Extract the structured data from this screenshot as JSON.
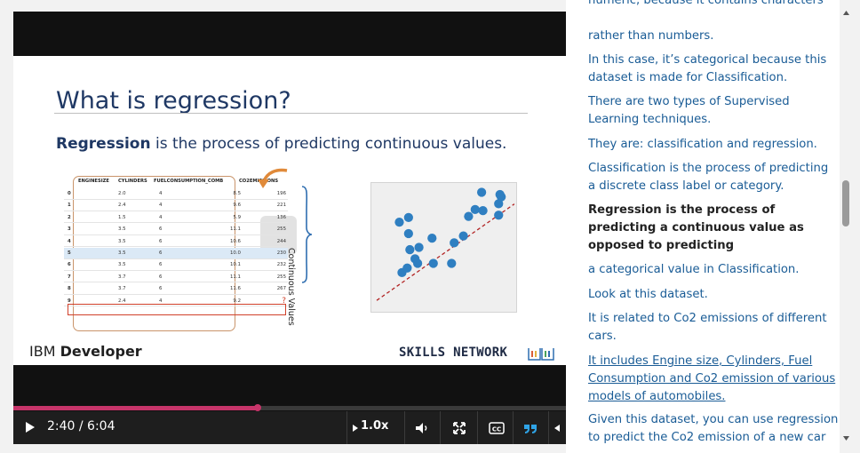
{
  "slide": {
    "title": "What is regression?",
    "subtitle_bold": "Regression",
    "subtitle_rest": " is the process of predicting continuous values.",
    "table": {
      "headers": [
        "ENGINESIZE",
        "CYLINDERS",
        "FUELCONSUMPTION_COMB",
        "CO2EMISSIONS"
      ],
      "rows": [
        [
          "0",
          "2.0",
          "4",
          "8.5",
          "196"
        ],
        [
          "1",
          "2.4",
          "4",
          "9.6",
          "221"
        ],
        [
          "2",
          "1.5",
          "4",
          "5.9",
          "136"
        ],
        [
          "3",
          "3.5",
          "6",
          "11.1",
          "255"
        ],
        [
          "4",
          "3.5",
          "6",
          "10.6",
          "244"
        ],
        [
          "5",
          "3.5",
          "6",
          "10.0",
          "230"
        ],
        [
          "6",
          "3.5",
          "6",
          "10.1",
          "232"
        ],
        [
          "7",
          "3.7",
          "6",
          "11.1",
          "255"
        ],
        [
          "8",
          "3.7",
          "6",
          "11.6",
          "267"
        ],
        [
          "9",
          "2.4",
          "4",
          "9.2",
          "?"
        ]
      ],
      "highlighted_row": 5
    },
    "continuous_label": "Continuous Values",
    "ibm_prefix": "IBM ",
    "ibm_bold": "Developer",
    "skills_network": "SKILLS NETWORK",
    "scatter_points": [
      [
        0.16,
        0.72
      ],
      [
        0.18,
        0.28
      ],
      [
        0.24,
        0.48
      ],
      [
        0.23,
        0.62
      ],
      [
        0.28,
        0.4
      ],
      [
        0.22,
        0.32
      ],
      [
        0.3,
        0.36
      ],
      [
        0.31,
        0.5
      ],
      [
        0.23,
        0.76
      ],
      [
        0.42,
        0.36
      ],
      [
        0.41,
        0.58
      ],
      [
        0.56,
        0.36
      ],
      [
        0.58,
        0.54
      ],
      [
        0.65,
        0.6
      ],
      [
        0.69,
        0.77
      ],
      [
        0.74,
        0.83
      ],
      [
        0.8,
        0.82
      ],
      [
        0.79,
        0.98
      ],
      [
        0.92,
        0.78
      ],
      [
        0.92,
        0.88
      ],
      [
        0.94,
        0.94
      ],
      [
        0.93,
        0.96
      ]
    ],
    "colors": {
      "title": "#1f3864",
      "points": "#2f7fc1",
      "trend": "#b22222"
    }
  },
  "player": {
    "time_display": "2:40 / 6:04",
    "progress": 0.442,
    "speed": "1.0x",
    "icons": [
      "play-icon",
      "volume-icon",
      "fullscreen-icon",
      "closed-captions-icon",
      "transcript-quote-icon",
      "collapse-arrow-icon"
    ],
    "accent": "#c7356a"
  },
  "transcript": {
    "lines": [
      {
        "text": "numeric, because it contains characters",
        "state": "normal"
      },
      {
        "text": "rather than numbers.",
        "state": "normal"
      },
      {
        "text": "In this case, it’s categorical because this dataset is made for Classification.",
        "state": "normal"
      },
      {
        "text": "There are two types of Supervised Learning techniques.",
        "state": "normal"
      },
      {
        "text": "They are: classification and regression.",
        "state": "normal"
      },
      {
        "text": "Classification is the process of predicting a discrete class label or category.",
        "state": "normal"
      },
      {
        "text": "Regression is the process of predicting a continuous value as opposed to predicting",
        "state": "active"
      },
      {
        "text": "a categorical value in Classification.",
        "state": "normal"
      },
      {
        "text": "Look at this dataset.",
        "state": "normal"
      },
      {
        "text": "It is related to Co2 emissions of different cars.",
        "state": "normal"
      },
      {
        "text": "It includes Engine size, Cylinders, Fuel Consumption and Co2 emission of various models of automobiles.",
        "state": "linked"
      },
      {
        "text": "Given this dataset, you can use regression to predict the Co2 emission of a new car",
        "state": "normal"
      }
    ],
    "link_color": "#1a5c96"
  }
}
